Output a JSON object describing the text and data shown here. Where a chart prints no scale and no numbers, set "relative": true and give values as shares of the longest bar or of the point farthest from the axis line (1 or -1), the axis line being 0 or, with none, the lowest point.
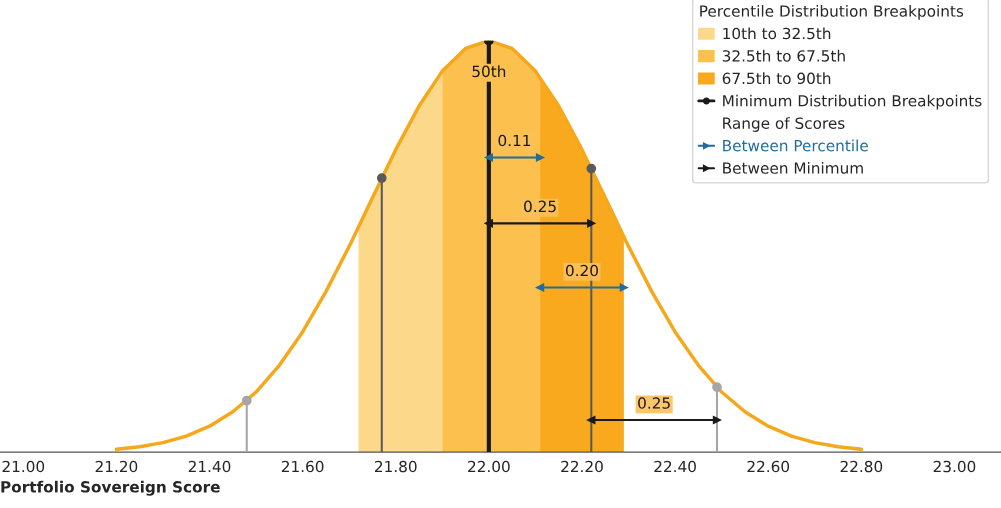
{
  "chart_data": {
    "type": "line",
    "relative": true,
    "xlabel": "Portfolio Sovereign Score",
    "legend_title": "Percentile Distribution Breakpoints",
    "legend": "top right",
    "tick_labels": "x",
    "xlim": [
      20.95,
      23.1
    ],
    "xticks": [
      {
        "value": 21.0,
        "label": "21.00"
      },
      {
        "value": 21.2,
        "label": "21.20"
      },
      {
        "value": 21.4,
        "label": "21.40"
      },
      {
        "value": 21.6,
        "label": "21.60"
      },
      {
        "value": 21.8,
        "label": "21.80"
      },
      {
        "value": 22.0,
        "label": "22.00"
      },
      {
        "value": 22.2,
        "label": "22.20"
      },
      {
        "value": 22.4,
        "label": "22.40"
      },
      {
        "value": 22.6,
        "label": "22.60"
      },
      {
        "value": 22.8,
        "label": "22.80"
      },
      {
        "value": 23.0,
        "label": "23.00"
      }
    ],
    "series": [
      {
        "color": "#f5a81c",
        "x": [
          21.2,
          21.25,
          21.3,
          21.35,
          21.4,
          21.45,
          21.5,
          21.55,
          21.6,
          21.65,
          21.7,
          21.75,
          21.8,
          21.85,
          21.9,
          21.95,
          22.0,
          22.05,
          22.1,
          22.15,
          22.2,
          22.25,
          22.3,
          22.35,
          22.4,
          22.45,
          22.5,
          22.55,
          22.6,
          22.65,
          22.7,
          22.75,
          22.8
        ],
        "values": [
          0.007,
          0.013,
          0.023,
          0.039,
          0.063,
          0.098,
          0.146,
          0.211,
          0.292,
          0.39,
          0.5,
          0.618,
          0.735,
          0.841,
          0.926,
          0.981,
          1,
          0.981,
          0.926,
          0.841,
          0.735,
          0.618,
          0.5,
          0.39,
          0.292,
          0.211,
          0.146,
          0.098,
          0.063,
          0.039,
          0.023,
          0.013,
          0.007
        ]
      },
      {
        "type": "area",
        "name": "10th to 32.5th",
        "color": "#fcd88a",
        "x": [
          21.72,
          21.75,
          21.8,
          21.85,
          21.9
        ],
        "values": [
          0.547,
          0.618,
          0.735,
          0.841,
          0.926
        ]
      },
      {
        "type": "area",
        "name": "32.5th to 67.5th",
        "color": "#fcc04e",
        "x": [
          21.9,
          21.95,
          22.0,
          22.05,
          22.1,
          22.11
        ],
        "values": [
          0.926,
          0.981,
          1,
          0.981,
          0.926,
          0.911
        ]
      },
      {
        "type": "area",
        "name": "67.5th to 90th",
        "color": "#f9a91e",
        "x": [
          22.11,
          22.15,
          22.2,
          22.25,
          22.29
        ],
        "values": [
          0.911,
          0.841,
          0.735,
          0.618,
          0.524
        ]
      },
      {
        "type": "lollipop",
        "name": "Minimum Distribution Breakpoints",
        "colors": [
          "#a6a6a6",
          "#5a5a5a",
          "#1a1a1a",
          "#5a5a5a",
          "#a6a6a6"
        ],
        "x": [
          21.48,
          21.77,
          22.0,
          22.22,
          22.49
        ],
        "values": [
          0.125,
          0.666,
          1,
          0.689,
          0.158
        ]
      },
      {
        "type": "line",
        "name": "Between Percentile",
        "marker": "triangle",
        "color": "#1f6e9c",
        "x": [
          22.0,
          22.11,
          null,
          22.11,
          22.29
        ],
        "values": [
          0.716,
          0.716,
          null,
          0.4,
          0.4
        ]
      },
      {
        "type": "line",
        "name": "Between Minimum",
        "marker": "triangle",
        "color": "#1a1a1a",
        "x": [
          22.0,
          22.22,
          null,
          22.22,
          22.49
        ],
        "values": [
          0.556,
          0.556,
          null,
          0.078,
          0.078
        ]
      }
    ],
    "annotations": [
      "50th",
      "0.11",
      "0.25",
      "0.20",
      "0.25",
      "Range of Scores"
    ]
  }
}
